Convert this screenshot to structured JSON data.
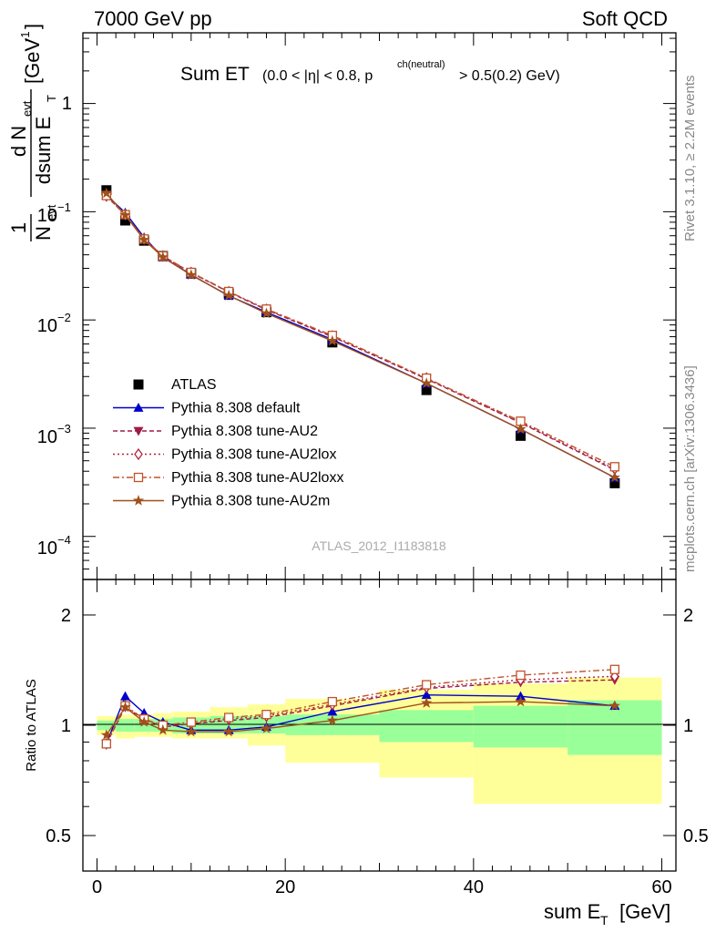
{
  "header": {
    "left": "7000 GeV pp",
    "right": "Soft QCD"
  },
  "plot_title": {
    "main": "Sum ET",
    "cut_prefix": "(0.0 < |η| < 0.8, p",
    "cut_sup": "ch(neutral)",
    "cut_suffix": "> 0.5(0.2) GeV)"
  },
  "side_labels": {
    "rivet": "Rivet 3.1.10, ≥ 2.2M events",
    "mcplots": "mcplots.cern.ch [arXiv:1306.3436]"
  },
  "analysis_id": "ATLAS_2012_I1183818",
  "ylabel_main": {
    "num_one": "1",
    "den_N": "N",
    "den_evt": "evt",
    "frac_num": "d N",
    "frac_num_sub": "evt",
    "frac_den": "dsum E",
    "frac_den_sub": "T",
    "unit": "[GeV",
    "unit_sup": "-1",
    "unit_close": "]"
  },
  "ylabel_ratio": "Ratio to ATLAS",
  "xlabel": {
    "text": "sum E",
    "sub": "T",
    "unit": "[GeV]"
  },
  "colors": {
    "data": "#000000",
    "default": "#0000cc",
    "au2": "#9e1a4a",
    "au2lox": "#b0263f",
    "au2loxx": "#c0532a",
    "au2m": "#a0501a",
    "band_inner": "#99ff99",
    "band_outer": "#ffff99"
  },
  "chart_data": [
    {
      "type": "scatter",
      "name": "main",
      "xlim": [
        -1.5,
        61.5
      ],
      "ylim": [
        4e-05,
        4.5
      ],
      "log_y": true,
      "x_ticks": [
        0,
        20,
        40,
        60
      ],
      "y_tick_labels": [
        "1",
        "10^-1",
        "10^-2",
        "10^-3",
        "10^-4"
      ],
      "x": [
        1,
        3,
        5,
        7,
        10,
        14,
        18,
        25,
        35,
        45,
        55
      ],
      "series": [
        {
          "name": "ATLAS",
          "key": "data",
          "marker": "square",
          "values": [
            0.158,
            0.083,
            0.054,
            0.039,
            0.027,
            0.0175,
            0.0118,
            0.0062,
            0.00225,
            0.00085,
            0.00031
          ]
        },
        {
          "name": "Pythia 8.308 default",
          "key": "default",
          "marker": "triangle-up",
          "line": "solid",
          "values": [
            0.142,
            0.098,
            0.058,
            0.038,
            0.0262,
            0.0167,
            0.0118,
            0.0066,
            0.0026,
            0.00098,
            0.00035
          ]
        },
        {
          "name": "Pythia 8.308 tune-AU2",
          "key": "au2",
          "marker": "triangle-down",
          "line": "dashed",
          "values": [
            0.14,
            0.093,
            0.056,
            0.039,
            0.0273,
            0.0181,
            0.0124,
            0.007,
            0.00285,
            0.00112,
            0.00041
          ]
        },
        {
          "name": "Pythia 8.308 tune-AU2lox",
          "key": "au2lox",
          "marker": "diamond-open",
          "line": "dotted",
          "values": [
            0.14,
            0.094,
            0.056,
            0.039,
            0.0274,
            0.0182,
            0.0125,
            0.0071,
            0.0029,
            0.00113,
            0.00042
          ]
        },
        {
          "name": "Pythia 8.308 tune-AU2loxx",
          "key": "au2loxx",
          "marker": "square-open",
          "line": "dashdot",
          "values": [
            0.141,
            0.094,
            0.056,
            0.039,
            0.0275,
            0.0183,
            0.0126,
            0.0072,
            0.0029,
            0.00116,
            0.00044
          ]
        },
        {
          "name": "Pythia 8.308 tune-AU2m",
          "key": "au2m",
          "marker": "star",
          "line": "solid",
          "values": [
            0.148,
            0.093,
            0.055,
            0.038,
            0.026,
            0.0168,
            0.0115,
            0.0064,
            0.0026,
            0.00098,
            0.00035
          ]
        }
      ]
    },
    {
      "type": "line",
      "name": "ratio",
      "xlim": [
        -1.5,
        61.5
      ],
      "ylim": [
        0.4,
        2.5
      ],
      "log_y": true,
      "x_ticks": [
        0,
        20,
        40,
        60
      ],
      "y_ticks": [
        0.5,
        1,
        2
      ],
      "ylabel": "Ratio to ATLAS",
      "x": [
        1,
        3,
        5,
        7,
        10,
        14,
        18,
        25,
        35,
        45,
        55
      ],
      "bands": {
        "edges": [
          0,
          2,
          4,
          6,
          8,
          12,
          16,
          20,
          30,
          40,
          50,
          60
        ],
        "inner_lo": [
          0.97,
          0.96,
          0.96,
          0.96,
          0.95,
          0.95,
          0.95,
          0.94,
          0.9,
          0.87,
          0.83
        ],
        "inner_hi": [
          1.03,
          1.04,
          1.04,
          1.04,
          1.05,
          1.06,
          1.06,
          1.07,
          1.1,
          1.13,
          1.17
        ],
        "outer_lo": [
          0.94,
          0.92,
          0.93,
          0.93,
          0.92,
          0.92,
          0.88,
          0.79,
          0.72,
          0.61,
          0.61
        ],
        "outer_hi": [
          1.06,
          1.07,
          1.07,
          1.08,
          1.09,
          1.12,
          1.14,
          1.18,
          1.25,
          1.3,
          1.35
        ]
      },
      "series": [
        {
          "name": "Pythia 8.308 default",
          "key": "default",
          "values": [
            0.89,
            1.2,
            1.08,
            1.02,
            0.97,
            0.97,
            0.99,
            1.09,
            1.21,
            1.2,
            1.13
          ]
        },
        {
          "name": "Pythia 8.308 tune-AU2",
          "key": "au2",
          "values": [
            0.89,
            1.12,
            1.04,
            0.99,
            1.01,
            1.03,
            1.05,
            1.13,
            1.26,
            1.31,
            1.33
          ]
        },
        {
          "name": "Pythia 8.308 tune-AU2lox",
          "key": "au2lox",
          "values": [
            0.89,
            1.13,
            1.04,
            0.99,
            1.01,
            1.04,
            1.06,
            1.14,
            1.27,
            1.33,
            1.36
          ]
        },
        {
          "name": "Pythia 8.308 tune-AU2loxx",
          "key": "au2loxx",
          "values": [
            0.89,
            1.13,
            1.04,
            1.0,
            1.02,
            1.05,
            1.07,
            1.16,
            1.29,
            1.37,
            1.42
          ]
        },
        {
          "name": "Pythia 8.308 tune-AU2m",
          "key": "au2m",
          "values": [
            0.94,
            1.12,
            1.02,
            0.97,
            0.96,
            0.96,
            0.98,
            1.03,
            1.15,
            1.16,
            1.13
          ]
        }
      ]
    }
  ]
}
